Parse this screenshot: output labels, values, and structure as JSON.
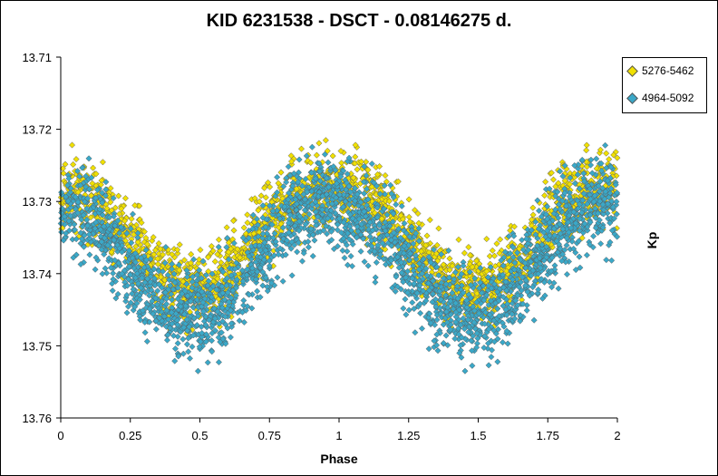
{
  "chart_data": {
    "type": "scatter",
    "title": "KID 6231538  - DSCT - 0.08146275  d.",
    "xlabel": "Phase",
    "ylabel": "Kp",
    "xlim": [
      0,
      2
    ],
    "ylim": [
      13.71,
      13.76
    ],
    "y_inverted": true,
    "grid": false,
    "legend_position": "top-right",
    "x_ticks": [
      "0",
      "0.25",
      "0.5",
      "0.75",
      "1",
      "1.25",
      "1.5",
      "1.75",
      "2"
    ],
    "y_ticks": [
      "13.71",
      "13.72",
      "13.73",
      "13.74",
      "13.75",
      "13.76"
    ],
    "series": [
      {
        "name": "5276-5462",
        "color": "#f0e000",
        "marker": "diamond",
        "x": [
          0.0,
          0.05,
          0.1,
          0.15,
          0.2,
          0.25,
          0.3,
          0.35,
          0.4,
          0.45,
          0.5,
          0.55,
          0.6,
          0.65,
          0.7,
          0.75,
          0.8,
          0.85,
          0.9,
          0.95,
          1.0,
          1.05,
          1.1,
          1.15,
          1.2,
          1.25,
          1.3,
          1.35,
          1.4,
          1.45,
          1.5,
          1.55,
          1.6,
          1.65,
          1.7,
          1.75,
          1.8,
          1.85,
          1.9,
          1.95,
          2.0
        ],
        "y": [
          13.7295,
          13.7285,
          13.7295,
          13.731,
          13.733,
          13.7355,
          13.738,
          13.74,
          13.7415,
          13.742,
          13.742,
          13.7415,
          13.74,
          13.738,
          13.7355,
          13.733,
          13.731,
          13.7295,
          13.7285,
          13.728,
          13.7285,
          13.7285,
          13.7295,
          13.731,
          13.733,
          13.7355,
          13.738,
          13.74,
          13.7415,
          13.742,
          13.742,
          13.7415,
          13.74,
          13.738,
          13.7355,
          13.733,
          13.731,
          13.7295,
          13.7285,
          13.728,
          13.7285
        ],
        "spread": 0.0065
      },
      {
        "name": "4964-5092",
        "color": "#3aa8c8",
        "marker": "diamond",
        "x": [
          0.0,
          0.05,
          0.1,
          0.15,
          0.2,
          0.25,
          0.3,
          0.35,
          0.4,
          0.45,
          0.5,
          0.55,
          0.6,
          0.65,
          0.7,
          0.75,
          0.8,
          0.85,
          0.9,
          0.95,
          1.0,
          1.05,
          1.1,
          1.15,
          1.2,
          1.25,
          1.3,
          1.35,
          1.4,
          1.45,
          1.5,
          1.55,
          1.6,
          1.65,
          1.7,
          1.75,
          1.8,
          1.85,
          1.9,
          1.95,
          2.0
        ],
        "y": [
          13.7315,
          13.731,
          13.732,
          13.734,
          13.7365,
          13.739,
          13.7415,
          13.7435,
          13.745,
          13.7455,
          13.7455,
          13.745,
          13.743,
          13.741,
          13.7385,
          13.736,
          13.7335,
          13.7315,
          13.7305,
          13.73,
          13.7305,
          13.731,
          13.732,
          13.734,
          13.7365,
          13.739,
          13.7415,
          13.7435,
          13.745,
          13.7455,
          13.7455,
          13.745,
          13.743,
          13.741,
          13.7385,
          13.736,
          13.7335,
          13.7315,
          13.7305,
          13.73,
          13.7305
        ],
        "spread": 0.008
      }
    ]
  }
}
